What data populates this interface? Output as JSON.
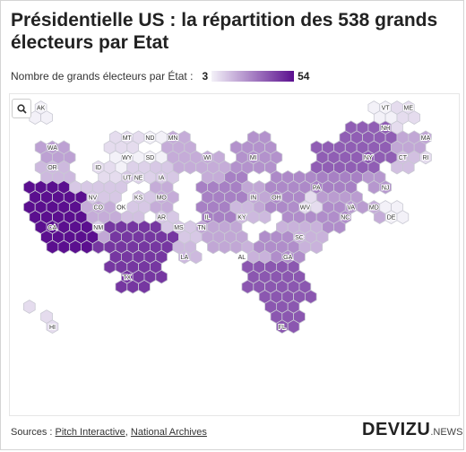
{
  "title": "Présidentielle US : la répartition des 538 grands électeurs par Etat",
  "legend": {
    "label": "Nombre de grands électeurs par État :",
    "min": "3",
    "max": "54",
    "color_min": "#f3f1f8",
    "color_max": "#5b0f8f"
  },
  "zoom_icon": "search-icon",
  "sources": {
    "prefix": "Sources : ",
    "items": [
      "Pitch Interactive",
      "National Archives"
    ]
  },
  "logo": {
    "main": "DEVIZU",
    "suffix": ".NEWS"
  },
  "states": [
    {
      "code": "AK",
      "value": 3
    },
    {
      "code": "HI",
      "value": 4
    },
    {
      "code": "WA",
      "value": 12
    },
    {
      "code": "OR",
      "value": 8
    },
    {
      "code": "CA",
      "value": 54
    },
    {
      "code": "NV",
      "value": 6
    },
    {
      "code": "ID",
      "value": 4
    },
    {
      "code": "MT",
      "value": 4
    },
    {
      "code": "WY",
      "value": 3
    },
    {
      "code": "UT",
      "value": 6
    },
    {
      "code": "AZ",
      "value": 11
    },
    {
      "code": "CO",
      "value": 10
    },
    {
      "code": "NM",
      "value": 5
    },
    {
      "code": "ND",
      "value": 3
    },
    {
      "code": "SD",
      "value": 3
    },
    {
      "code": "NE",
      "value": 5
    },
    {
      "code": "KS",
      "value": 6
    },
    {
      "code": "OK",
      "value": 7
    },
    {
      "code": "TX",
      "value": 40
    },
    {
      "code": "MN",
      "value": 10
    },
    {
      "code": "IA",
      "value": 6
    },
    {
      "code": "MO",
      "value": 10
    },
    {
      "code": "AR",
      "value": 6
    },
    {
      "code": "LA",
      "value": 8
    },
    {
      "code": "WI",
      "value": 10
    },
    {
      "code": "IL",
      "value": 19
    },
    {
      "code": "MI",
      "value": 15
    },
    {
      "code": "IN",
      "value": 11
    },
    {
      "code": "OH",
      "value": 17
    },
    {
      "code": "KY",
      "value": 8
    },
    {
      "code": "TN",
      "value": 11
    },
    {
      "code": "MS",
      "value": 6
    },
    {
      "code": "AL",
      "value": 9
    },
    {
      "code": "GA",
      "value": 16
    },
    {
      "code": "FL",
      "value": 30
    },
    {
      "code": "SC",
      "value": 9
    },
    {
      "code": "NC",
      "value": 16
    },
    {
      "code": "VA",
      "value": 13
    },
    {
      "code": "WV",
      "value": 4
    },
    {
      "code": "MD",
      "value": 10
    },
    {
      "code": "DE",
      "value": 3
    },
    {
      "code": "PA",
      "value": 19
    },
    {
      "code": "NJ",
      "value": 14
    },
    {
      "code": "NY",
      "value": 28
    },
    {
      "code": "CT",
      "value": 7
    },
    {
      "code": "RI",
      "value": 4
    },
    {
      "code": "MA",
      "value": 11
    },
    {
      "code": "VT",
      "value": 3
    },
    {
      "code": "NH",
      "value": 4
    },
    {
      "code": "ME",
      "value": 4
    }
  ]
}
